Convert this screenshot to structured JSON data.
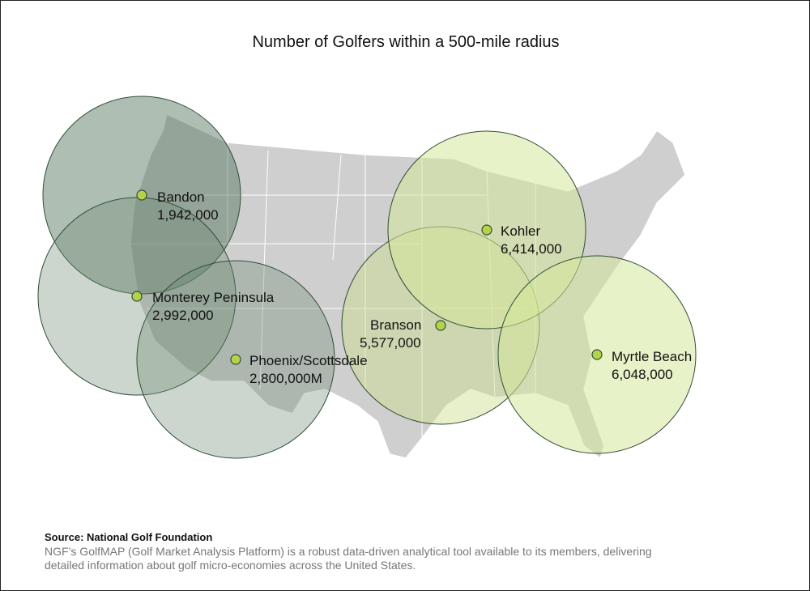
{
  "title": "Number of Golfers within a 500-mile radius",
  "locations": [
    {
      "name": "Bandon",
      "value": "1,942,000"
    },
    {
      "name": "Monterey Peninsula",
      "value": "2,992,000"
    },
    {
      "name": "Phoenix/Scottsdale",
      "value": "2,800,000M"
    },
    {
      "name": "Branson",
      "value": "5,577,000"
    },
    {
      "name": "Kohler",
      "value": "6,414,000"
    },
    {
      "name": "Myrtle Beach",
      "value": "6,048,000"
    }
  ],
  "source": "Source: National Golf Foundation",
  "description": "NGF’s GolfMAP (Golf Market Analysis Platform) is a robust data-driven analytical tool available to its members, delivering detailed information about golf micro-economies across the United States."
}
